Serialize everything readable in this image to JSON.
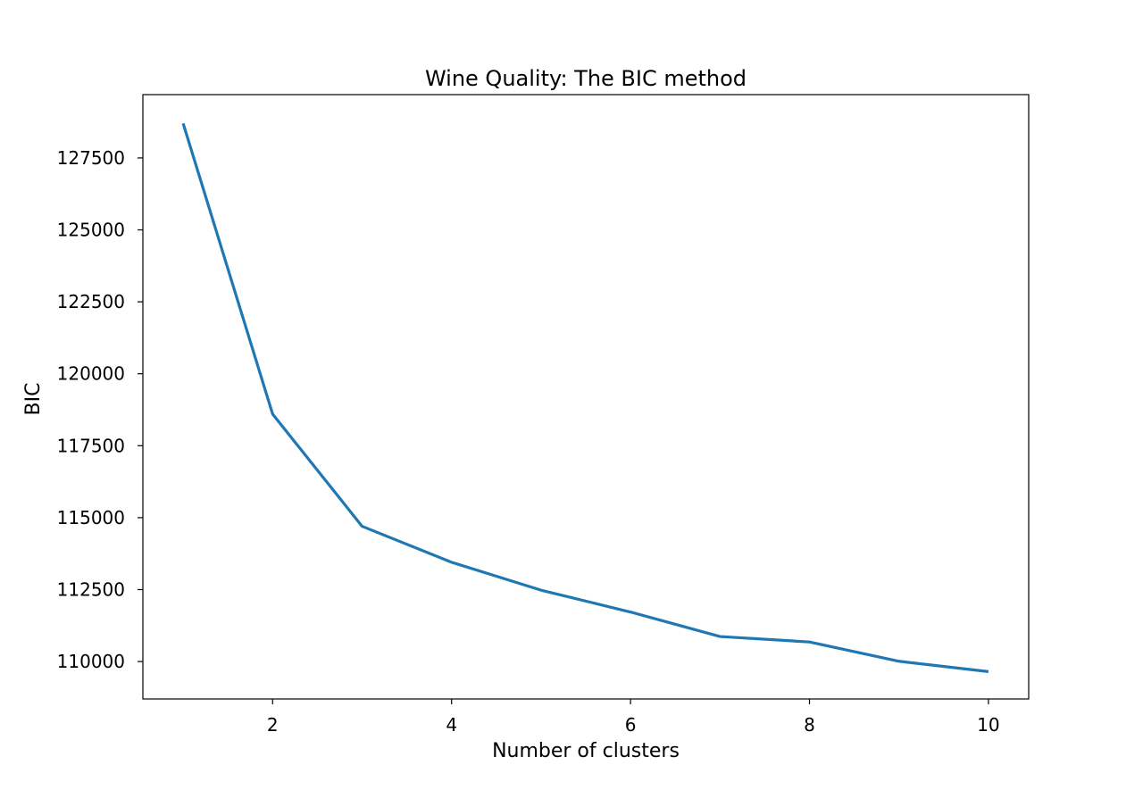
{
  "chart_data": {
    "type": "line",
    "title": "Wine Quality: The BIC method",
    "xlabel": "Number of clusters",
    "ylabel": "BIC",
    "x": [
      1,
      2,
      3,
      4,
      5,
      6,
      7,
      8,
      9,
      10
    ],
    "series": [
      {
        "values": [
          128700,
          118600,
          114700,
          113450,
          112480,
          111720,
          110870,
          110680,
          110010,
          109650
        ],
        "color": "#1f77b4"
      }
    ],
    "xlim": [
      0.55,
      10.45
    ],
    "ylim": [
      108700,
      129700
    ],
    "xticks": [
      2,
      4,
      6,
      8,
      10
    ],
    "yticks": [
      110000,
      112500,
      115000,
      117500,
      120000,
      122500,
      125000,
      127500
    ],
    "grid": false,
    "legend": "none"
  }
}
